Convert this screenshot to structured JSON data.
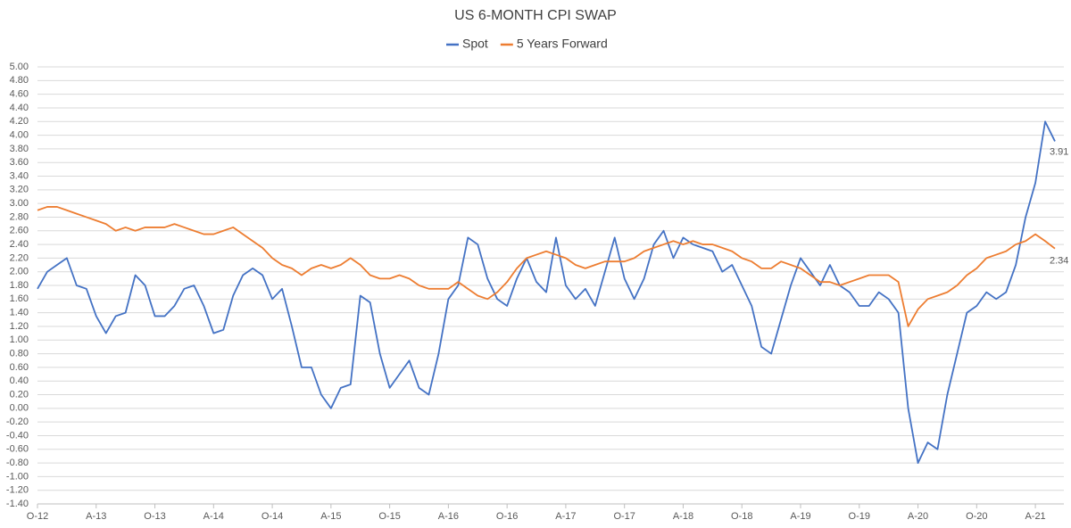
{
  "chart_data": {
    "type": "line",
    "title": "US 6-MONTH CPI SWAP",
    "categories": [
      "O-12",
      null,
      null,
      null,
      null,
      null,
      "A-13",
      null,
      null,
      null,
      null,
      null,
      "O-13",
      null,
      null,
      null,
      null,
      null,
      "A-14",
      null,
      null,
      null,
      null,
      null,
      "O-14",
      null,
      null,
      null,
      null,
      null,
      "A-15",
      null,
      null,
      null,
      null,
      null,
      "O-15",
      null,
      null,
      null,
      null,
      null,
      "A-16",
      null,
      null,
      null,
      null,
      null,
      "O-16",
      null,
      null,
      null,
      null,
      null,
      "A-17",
      null,
      null,
      null,
      null,
      null,
      "O-17",
      null,
      null,
      null,
      null,
      null,
      "A-18",
      null,
      null,
      null,
      null,
      null,
      "O-18",
      null,
      null,
      null,
      null,
      null,
      "A-19",
      null,
      null,
      null,
      null,
      null,
      "O-19",
      null,
      null,
      null,
      null,
      null,
      "A-20",
      null,
      null,
      null,
      null,
      null,
      "O-20",
      null,
      null,
      null,
      null,
      null,
      "A-21",
      null,
      null
    ],
    "series": [
      {
        "name": "Spot",
        "color": "#4472c4",
        "values": [
          1.75,
          2.0,
          2.1,
          2.2,
          1.8,
          1.75,
          1.35,
          1.1,
          1.35,
          1.4,
          1.95,
          1.8,
          1.35,
          1.35,
          1.5,
          1.75,
          1.8,
          1.5,
          1.1,
          1.15,
          1.65,
          1.95,
          2.05,
          1.95,
          1.6,
          1.75,
          1.2,
          0.6,
          0.6,
          0.2,
          0.0,
          0.3,
          0.35,
          1.65,
          1.55,
          0.8,
          0.3,
          0.5,
          0.7,
          0.3,
          0.2,
          0.8,
          1.6,
          1.8,
          2.5,
          2.4,
          1.9,
          1.6,
          1.5,
          1.9,
          2.2,
          1.85,
          1.7,
          2.5,
          1.8,
          1.6,
          1.75,
          1.5,
          2.0,
          2.5,
          1.9,
          1.6,
          1.9,
          2.4,
          2.6,
          2.2,
          2.5,
          2.4,
          2.35,
          2.3,
          2.0,
          2.1,
          1.8,
          1.5,
          0.9,
          0.8,
          1.3,
          1.8,
          2.2,
          2.0,
          1.8,
          2.1,
          1.8,
          1.7,
          1.5,
          1.5,
          1.7,
          1.6,
          1.4,
          0.0,
          -0.8,
          -0.5,
          -0.6,
          0.2,
          0.8,
          1.4,
          1.5,
          1.7,
          1.6,
          1.7,
          2.1,
          2.8,
          3.3,
          4.2,
          3.91
        ]
      },
      {
        "name": "5 Years Forward",
        "color": "#ed7d31",
        "values": [
          2.9,
          2.95,
          2.95,
          2.9,
          2.85,
          2.8,
          2.75,
          2.7,
          2.6,
          2.65,
          2.6,
          2.65,
          2.65,
          2.65,
          2.7,
          2.65,
          2.6,
          2.55,
          2.55,
          2.6,
          2.65,
          2.55,
          2.45,
          2.35,
          2.2,
          2.1,
          2.05,
          1.95,
          2.05,
          2.1,
          2.05,
          2.1,
          2.2,
          2.1,
          1.95,
          1.9,
          1.9,
          1.95,
          1.9,
          1.8,
          1.75,
          1.75,
          1.75,
          1.85,
          1.75,
          1.65,
          1.6,
          1.7,
          1.85,
          2.05,
          2.2,
          2.25,
          2.3,
          2.25,
          2.2,
          2.1,
          2.05,
          2.1,
          2.15,
          2.15,
          2.15,
          2.2,
          2.3,
          2.35,
          2.4,
          2.45,
          2.4,
          2.45,
          2.4,
          2.4,
          2.35,
          2.3,
          2.2,
          2.15,
          2.05,
          2.05,
          2.15,
          2.1,
          2.05,
          1.95,
          1.85,
          1.85,
          1.8,
          1.85,
          1.9,
          1.95,
          1.95,
          1.95,
          1.85,
          1.2,
          1.45,
          1.6,
          1.65,
          1.7,
          1.8,
          1.95,
          2.05,
          2.2,
          2.25,
          2.3,
          2.4,
          2.45,
          2.55,
          2.45,
          2.34
        ]
      }
    ],
    "label_last": true,
    "ylim": [
      -1.4,
      5.0
    ],
    "yticks": [
      {
        "value": 5.0,
        "label": "5.00"
      },
      {
        "value": 4.8,
        "label": "4.80"
      },
      {
        "value": 4.6,
        "label": "4.60"
      },
      {
        "value": 4.4,
        "label": "4.40"
      },
      {
        "value": 4.2,
        "label": "4.20"
      },
      {
        "value": 4.0,
        "label": "4.00"
      },
      {
        "value": 3.8,
        "label": "3.80"
      },
      {
        "value": 3.6,
        "label": "3.60"
      },
      {
        "value": 3.4,
        "label": "3.40"
      },
      {
        "value": 3.2,
        "label": "3.20"
      },
      {
        "value": 3.0,
        "label": "3.00"
      },
      {
        "value": 2.8,
        "label": "2.80"
      },
      {
        "value": 2.6,
        "label": "2.60"
      },
      {
        "value": 2.4,
        "label": "2.40"
      },
      {
        "value": 2.2,
        "label": "2.20"
      },
      {
        "value": 2.0,
        "label": "2.00"
      },
      {
        "value": 1.8,
        "label": "1.80"
      },
      {
        "value": 1.6,
        "label": "1.60"
      },
      {
        "value": 1.4,
        "label": "1.40"
      },
      {
        "value": 1.2,
        "label": "1.20"
      },
      {
        "value": 1.0,
        "label": "1.00"
      },
      {
        "value": 0.8,
        "label": "0.80"
      },
      {
        "value": 0.6,
        "label": "0.60"
      },
      {
        "value": 0.4,
        "label": "0.40"
      },
      {
        "value": 0.2,
        "label": "0.20"
      },
      {
        "value": 0,
        "label": "0.00"
      },
      {
        "value": -0.2,
        "label": "-0.20"
      },
      {
        "value": -0.4,
        "label": "-0.40"
      },
      {
        "value": -0.6,
        "label": "-0.60"
      },
      {
        "value": -0.8,
        "label": "-0.80"
      },
      {
        "value": -1.0,
        "label": "-1.00"
      },
      {
        "value": -1.2,
        "label": "-1.20"
      },
      {
        "value": -1.4,
        "label": "-1.40"
      }
    ],
    "grid": true,
    "legend": "top"
  }
}
